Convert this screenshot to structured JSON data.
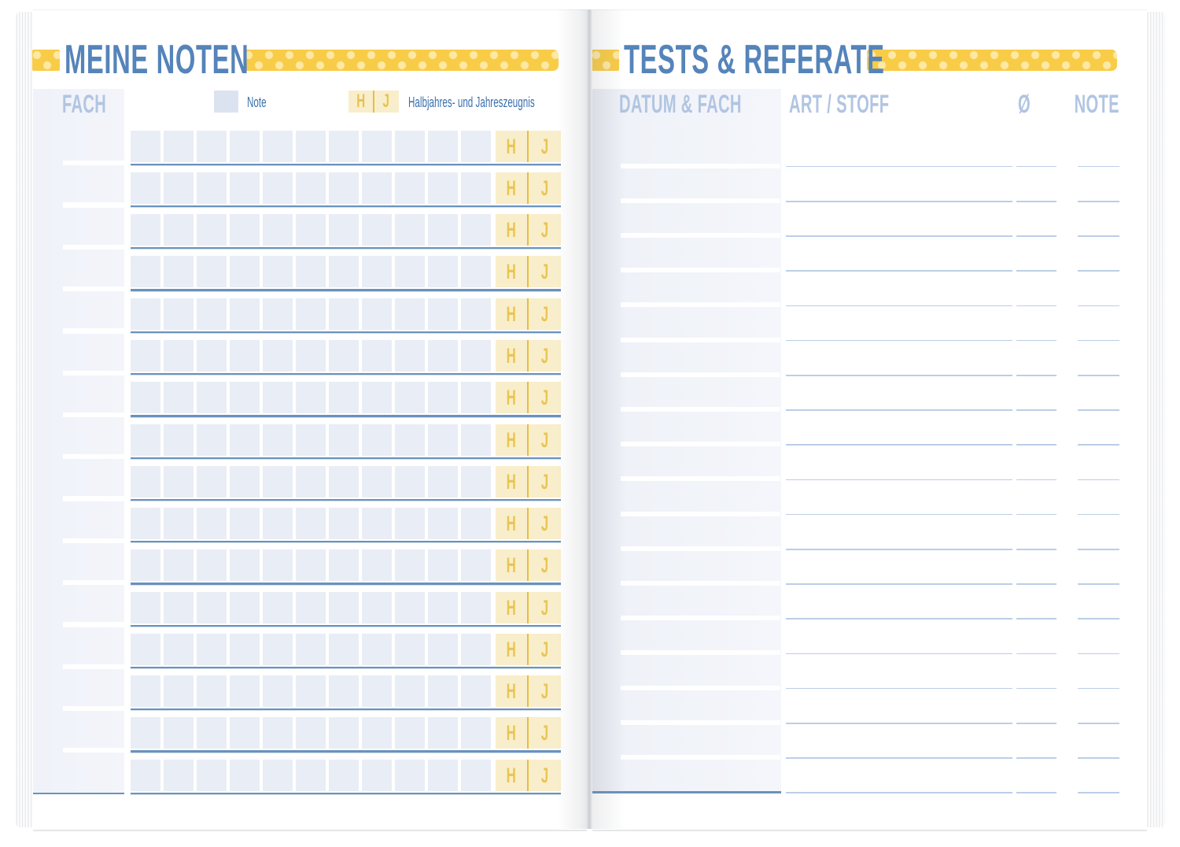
{
  "left_page": {
    "title": "MEINE NOTEN",
    "fach_header": "FACH",
    "legend": {
      "note_label": "Note",
      "h_label": "H",
      "j_label": "J",
      "hj_label": "Halbjahres- und Jahreszeugnis"
    },
    "grid": {
      "row_count": 16,
      "note_cells_per_row": 11,
      "h_label": "H",
      "j_label": "J"
    }
  },
  "right_page": {
    "title": "TESTS & REFERATE",
    "columns": {
      "datum_fach": "DATUM & FACH",
      "art_stoff": "ART / STOFF",
      "avg": "Ø",
      "note": "NOTE"
    },
    "grid": {
      "row_count": 19
    }
  },
  "colors": {
    "title_blue": "#5584ba",
    "header_label_blue": "#b1c5e2",
    "text_blue": "#3a70ae",
    "tape_yellow": "#f9cc48",
    "tape_dot_cream": "#fde9a4",
    "note_cell_gray": "#e9edf5",
    "legend_note_swatch": "#dce3f0",
    "grade_cell_yellow": "#f9eecb",
    "grade_letter_gold": "#e9c554",
    "gold_divider": "#e7bd45",
    "underline_blue": "#6a92bd",
    "row_line_blue": "#bccee6",
    "column_block_blue": "#f1f3fa"
  }
}
